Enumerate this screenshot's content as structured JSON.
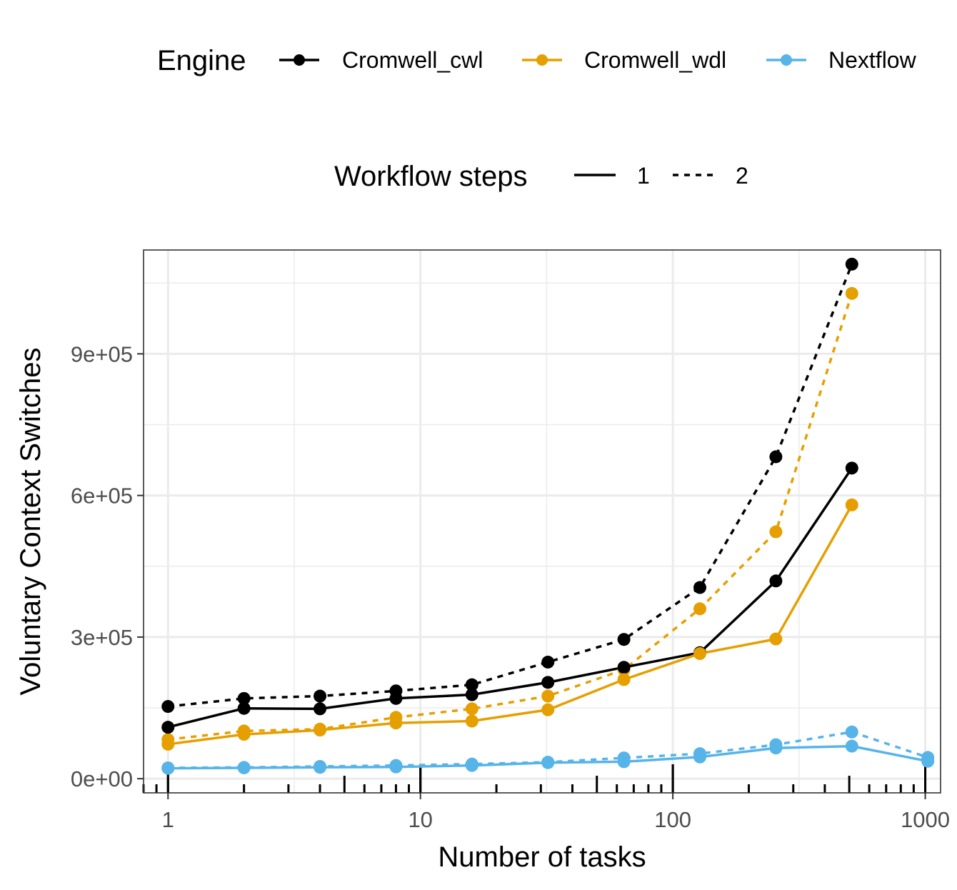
{
  "legend": {
    "engine": {
      "title": "Engine",
      "entries": [
        {
          "label": "Cromwell_cwl",
          "color": "#000000"
        },
        {
          "label": "Cromwell_wdl",
          "color": "#E69F00"
        },
        {
          "label": "Nextflow",
          "color": "#56B4E9"
        }
      ]
    },
    "steps": {
      "title": "Workflow steps",
      "entries": [
        {
          "label": "1",
          "linetype": "solid"
        },
        {
          "label": "2",
          "linetype": "dashed"
        }
      ]
    }
  },
  "chart_data": {
    "type": "line",
    "xlabel": "Number of tasks",
    "ylabel": "Voluntary Context Switches",
    "x_scale": "log10",
    "xlim": [
      0.8,
      1150
    ],
    "ylim": [
      -30000,
      1120000
    ],
    "x_ticks": [
      {
        "value": 1,
        "label": "1"
      },
      {
        "value": 10,
        "label": "10"
      },
      {
        "value": 100,
        "label": "100"
      },
      {
        "value": 1000,
        "label": "1000"
      }
    ],
    "y_ticks": [
      {
        "value": 0,
        "label": "0e+00"
      },
      {
        "value": 300000,
        "label": "3e+05"
      },
      {
        "value": 600000,
        "label": "6e+05"
      },
      {
        "value": 900000,
        "label": "9e+05"
      }
    ],
    "grid": true,
    "legend_position": "top",
    "series": [
      {
        "name": "Cromwell_cwl",
        "steps": "2",
        "color": "#000000",
        "linetype": "dashed",
        "x": [
          1,
          2,
          4,
          8,
          16,
          32,
          64,
          128,
          256,
          512
        ],
        "y": [
          153000,
          170000,
          175000,
          186000,
          199000,
          247000,
          295000,
          405000,
          682000,
          1090000
        ]
      },
      {
        "name": "Cromwell_wdl",
        "steps": "2",
        "color": "#E69F00",
        "linetype": "dashed",
        "x": [
          1,
          2,
          4,
          8,
          16,
          32,
          64,
          128,
          256,
          512
        ],
        "y": [
          83000,
          101000,
          105000,
          130000,
          148000,
          175000,
          231000,
          360000,
          523000,
          1028000
        ]
      },
      {
        "name": "Nextflow",
        "steps": "2",
        "color": "#56B4E9",
        "linetype": "dashed",
        "x": [
          1,
          2,
          4,
          8,
          16,
          32,
          64,
          128,
          256,
          512,
          1024
        ],
        "y": [
          23000,
          24000,
          26000,
          28000,
          31000,
          35000,
          44000,
          53000,
          72000,
          99000,
          45000
        ]
      },
      {
        "name": "Cromwell_cwl",
        "steps": "1",
        "color": "#000000",
        "linetype": "solid",
        "x": [
          1,
          2,
          4,
          8,
          16,
          32,
          64,
          128,
          256,
          512
        ],
        "y": [
          109000,
          149000,
          148000,
          170000,
          178000,
          204000,
          236000,
          267000,
          419000,
          658000
        ]
      },
      {
        "name": "Cromwell_wdl",
        "steps": "1",
        "color": "#E69F00",
        "linetype": "solid",
        "x": [
          1,
          2,
          4,
          8,
          16,
          32,
          64,
          128,
          256,
          512
        ],
        "y": [
          73000,
          94000,
          103000,
          118000,
          122000,
          146000,
          210000,
          265000,
          296000,
          580000
        ]
      },
      {
        "name": "Nextflow",
        "steps": "1",
        "color": "#56B4E9",
        "linetype": "solid",
        "x": [
          1,
          2,
          4,
          8,
          16,
          32,
          64,
          128,
          256,
          512,
          1024
        ],
        "y": [
          22000,
          23000,
          24000,
          25000,
          28000,
          34000,
          36000,
          46000,
          65000,
          69000,
          37000
        ]
      }
    ]
  }
}
